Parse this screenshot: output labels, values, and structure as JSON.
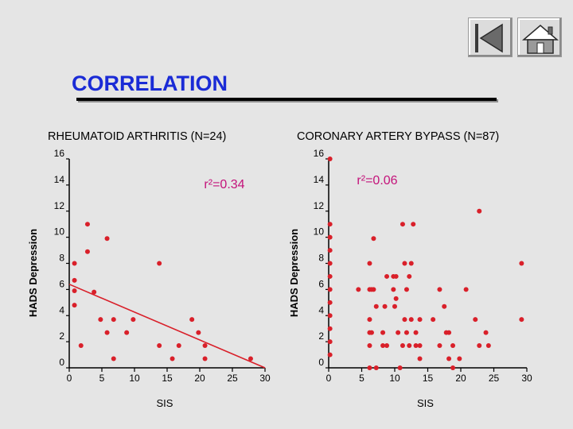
{
  "page_title": "CORRELATION",
  "icons": {
    "back": "back-skip-icon",
    "home": "home-icon"
  },
  "colors": {
    "title": "#1a2bd6",
    "points": "#d9202a",
    "annotation": "#c4127a"
  },
  "chart_data": [
    {
      "type": "scatter",
      "title": "RHEUMATOID ARTHRITIS (N=24)",
      "xlabel": "SIS",
      "ylabel": "HADS Depression",
      "xlim": [
        0,
        30
      ],
      "ylim": [
        0,
        16
      ],
      "xticks": [
        "0",
        "5",
        "10",
        "15",
        "20",
        "25",
        "30"
      ],
      "yticks": [
        "0",
        "2",
        "4",
        "6",
        "8",
        "10",
        "12",
        "14",
        "16"
      ],
      "annotation": "r²=0.34",
      "grid": false,
      "regression": {
        "x": [
          0,
          30
        ],
        "y": [
          6.4,
          0
        ]
      },
      "points": [
        {
          "x": 0.8,
          "y": 8
        },
        {
          "x": 0.8,
          "y": 6.7
        },
        {
          "x": 0.8,
          "y": 5.9
        },
        {
          "x": 0.8,
          "y": 4.8
        },
        {
          "x": 1.8,
          "y": 1.7
        },
        {
          "x": 2.8,
          "y": 11
        },
        {
          "x": 2.8,
          "y": 8.9
        },
        {
          "x": 3.8,
          "y": 5.8
        },
        {
          "x": 4.8,
          "y": 3.7
        },
        {
          "x": 5.8,
          "y": 9.9
        },
        {
          "x": 5.8,
          "y": 2.7
        },
        {
          "x": 6.8,
          "y": 3.7
        },
        {
          "x": 6.8,
          "y": 0.7
        },
        {
          "x": 8.8,
          "y": 2.7
        },
        {
          "x": 9.8,
          "y": 3.7
        },
        {
          "x": 13.8,
          "y": 8
        },
        {
          "x": 13.8,
          "y": 1.7
        },
        {
          "x": 15.8,
          "y": 0.7
        },
        {
          "x": 16.8,
          "y": 1.7
        },
        {
          "x": 18.8,
          "y": 3.7
        },
        {
          "x": 19.8,
          "y": 2.7
        },
        {
          "x": 20.8,
          "y": 1.7
        },
        {
          "x": 20.8,
          "y": 0.7
        },
        {
          "x": 27.8,
          "y": 0.7
        }
      ]
    },
    {
      "type": "scatter",
      "title": "CORONARY ARTERY BYPASS (N=87)",
      "xlabel": "SIS",
      "ylabel": "HADS Depression",
      "xlim": [
        0,
        30
      ],
      "ylim": [
        0,
        16
      ],
      "xticks": [
        "0",
        "5",
        "10",
        "15",
        "20",
        "25",
        "30"
      ],
      "yticks": [
        "0",
        "2",
        "4",
        "6",
        "8",
        "10",
        "12",
        "14",
        "16"
      ],
      "annotation": "r²=0.06",
      "grid": false,
      "points": [
        {
          "x": 0.2,
          "y": 16
        },
        {
          "x": 0.2,
          "y": 11
        },
        {
          "x": 0.2,
          "y": 10
        },
        {
          "x": 0.2,
          "y": 9
        },
        {
          "x": 0.2,
          "y": 8
        },
        {
          "x": 0.2,
          "y": 7
        },
        {
          "x": 0.2,
          "y": 6
        },
        {
          "x": 0.2,
          "y": 5
        },
        {
          "x": 0.2,
          "y": 4
        },
        {
          "x": 0.2,
          "y": 3
        },
        {
          "x": 0.2,
          "y": 2
        },
        {
          "x": 0.2,
          "y": 1
        },
        {
          "x": 4.5,
          "y": 6
        },
        {
          "x": 6.2,
          "y": 8
        },
        {
          "x": 6.2,
          "y": 6
        },
        {
          "x": 6.2,
          "y": 3.7
        },
        {
          "x": 6.2,
          "y": 2.7
        },
        {
          "x": 6.2,
          "y": 1.7
        },
        {
          "x": 6.2,
          "y": 0
        },
        {
          "x": 6.5,
          "y": 6
        },
        {
          "x": 6.5,
          "y": 2.7
        },
        {
          "x": 6.8,
          "y": 9.9
        },
        {
          "x": 6.8,
          "y": 6
        },
        {
          "x": 7.2,
          "y": 4.7
        },
        {
          "x": 7.2,
          "y": 0
        },
        {
          "x": 8.2,
          "y": 2.7
        },
        {
          "x": 8.2,
          "y": 1.7
        },
        {
          "x": 8.5,
          "y": 4.7
        },
        {
          "x": 8.8,
          "y": 7
        },
        {
          "x": 8.8,
          "y": 1.7
        },
        {
          "x": 9.8,
          "y": 7
        },
        {
          "x": 9.8,
          "y": 6
        },
        {
          "x": 10,
          "y": 4.7
        },
        {
          "x": 10.2,
          "y": 7
        },
        {
          "x": 10.2,
          "y": 5.3
        },
        {
          "x": 10.5,
          "y": 2.7
        },
        {
          "x": 10.8,
          "y": 0
        },
        {
          "x": 11.2,
          "y": 11
        },
        {
          "x": 11.2,
          "y": 1.7
        },
        {
          "x": 11.5,
          "y": 8
        },
        {
          "x": 11.5,
          "y": 3.7
        },
        {
          "x": 11.8,
          "y": 6
        },
        {
          "x": 11.8,
          "y": 2.7
        },
        {
          "x": 12.2,
          "y": 7
        },
        {
          "x": 12.2,
          "y": 1.7
        },
        {
          "x": 12.5,
          "y": 8
        },
        {
          "x": 12.5,
          "y": 3.7
        },
        {
          "x": 12.8,
          "y": 11
        },
        {
          "x": 13.2,
          "y": 2.7
        },
        {
          "x": 13.2,
          "y": 1.7
        },
        {
          "x": 13.8,
          "y": 3.7
        },
        {
          "x": 13.8,
          "y": 1.7
        },
        {
          "x": 13.8,
          "y": 0.7
        },
        {
          "x": 15.8,
          "y": 3.7
        },
        {
          "x": 16.8,
          "y": 6
        },
        {
          "x": 16.8,
          "y": 1.7
        },
        {
          "x": 17.5,
          "y": 4.7
        },
        {
          "x": 17.8,
          "y": 2.7
        },
        {
          "x": 18.2,
          "y": 2.7
        },
        {
          "x": 18.2,
          "y": 0.7
        },
        {
          "x": 18.8,
          "y": 1.7
        },
        {
          "x": 18.8,
          "y": 0
        },
        {
          "x": 19.8,
          "y": 0.7
        },
        {
          "x": 20.8,
          "y": 6
        },
        {
          "x": 22.2,
          "y": 3.7
        },
        {
          "x": 22.8,
          "y": 12
        },
        {
          "x": 22.8,
          "y": 1.7
        },
        {
          "x": 23.8,
          "y": 2.7
        },
        {
          "x": 24.2,
          "y": 1.7
        },
        {
          "x": 29.2,
          "y": 8
        },
        {
          "x": 29.2,
          "y": 3.7
        }
      ]
    }
  ]
}
